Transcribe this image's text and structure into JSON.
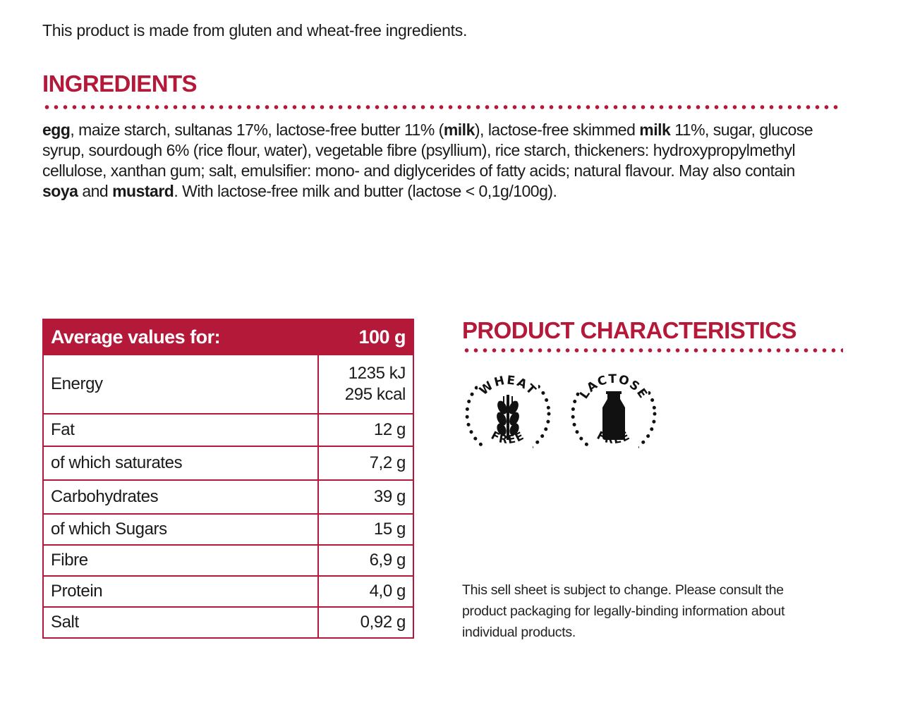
{
  "intro": "This product is made from gluten and wheat-free ingredients.",
  "ingredients": {
    "title": "INGREDIENTS",
    "parts": [
      {
        "text": "egg",
        "bold": true
      },
      {
        "text": ", maize starch, sultanas 17%, lactose-free butter 11% (",
        "bold": false
      },
      {
        "text": "milk",
        "bold": true
      },
      {
        "text": "), lactose-free skimmed ",
        "bold": false
      },
      {
        "text": "milk",
        "bold": true
      },
      {
        "text": " 11%, sugar, glucose syrup, sourdough 6% (rice flour, water), vegetable fibre (psyllium), rice starch, thickeners: hydroxypropylmethyl cellulose, xanthan gum; salt, emulsifier: mono- and diglycerides of fatty acids; natural flavour. May also contain ",
        "bold": false
      },
      {
        "text": "soya",
        "bold": true
      },
      {
        "text": " and ",
        "bold": false
      },
      {
        "text": "mustard",
        "bold": true
      },
      {
        "text": ". With lactose-free milk and butter (lactose < 0,1g/100g).",
        "bold": false
      }
    ]
  },
  "nutrition": {
    "header_label": "Average values for:",
    "header_value": "100 g",
    "rows": [
      {
        "label": "Energy",
        "values": [
          "1235 kJ",
          "295 kcal"
        ]
      },
      {
        "label": "Fat",
        "values": [
          "12 g"
        ]
      },
      {
        "label": "of which saturates",
        "values": [
          "7,2 g"
        ]
      },
      {
        "label": "Carbohydrates",
        "values": [
          "39 g"
        ]
      },
      {
        "label": "of which Sugars",
        "values": [
          "15 g"
        ]
      },
      {
        "label": "Fibre",
        "values": [
          "6,9 g"
        ]
      },
      {
        "label": "Protein",
        "values": [
          "4,0 g"
        ]
      },
      {
        "label": "Salt",
        "values": [
          "0,92 g"
        ]
      }
    ]
  },
  "characteristics": {
    "title": "PRODUCT CHARACTERISTICS",
    "badges": [
      {
        "top": "WHEAT",
        "bottom": "FREE",
        "icon": "wheat-icon"
      },
      {
        "top": "LACTOSE",
        "bottom": "FREE",
        "icon": "milk-bottle-icon"
      }
    ]
  },
  "disclaimer": "This sell sheet is subject to change. Please consult the product packaging for legally-binding information about individual products.",
  "colors": {
    "accent": "#b5193a",
    "text": "#1a1a1a"
  }
}
